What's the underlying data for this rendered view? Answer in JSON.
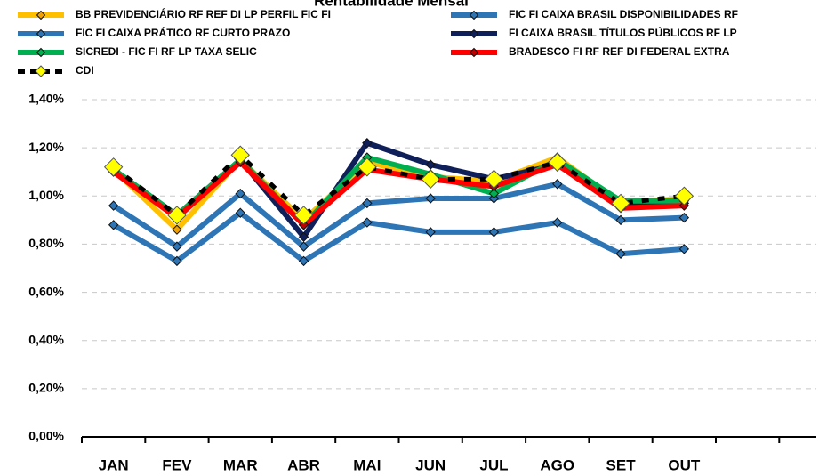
{
  "chart_data": {
    "type": "line",
    "title": "Rentabilidade Mensal",
    "categories": [
      "JAN",
      "FEV",
      "MAR",
      "ABR",
      "MAI",
      "JUN",
      "JUL",
      "AGO",
      "SET",
      "OUT",
      null,
      null
    ],
    "series": [
      {
        "name": "BB PREVIDENCIÁRIO RF REF DI LP PERFIL FIC FI",
        "color": "#ffc000",
        "marker_color": "#f0a000",
        "values": [
          1.11,
          0.86,
          1.15,
          0.9,
          1.14,
          1.08,
          1.06,
          1.16,
          0.97,
          0.99,
          null,
          null
        ]
      },
      {
        "name": "FIC FI CAIXA BRASIL DISPONIBILIDADES RF",
        "color": "#2e75b6",
        "marker_color": "#2e75b6",
        "values": [
          0.88,
          0.73,
          0.93,
          0.73,
          0.89,
          0.85,
          0.85,
          0.89,
          0.76,
          0.78,
          null,
          null
        ]
      },
      {
        "name": "FIC FI CAIXA PRÁTICO RF CURTO PRAZO",
        "color": "#2e75b6",
        "marker_color": "#2e75b6",
        "values": [
          0.96,
          0.79,
          1.01,
          0.79,
          0.97,
          0.99,
          0.99,
          1.05,
          0.9,
          0.91,
          null,
          null
        ]
      },
      {
        "name": "FI CAIXA BRASIL TÍTULOS PÚBLICOS RF LP",
        "color": "#0e1f5a",
        "marker_color": "#0e1f5a",
        "values": [
          1.11,
          0.92,
          1.15,
          0.83,
          1.22,
          1.13,
          1.07,
          1.13,
          0.96,
          0.97,
          null,
          null
        ]
      },
      {
        "name": "SICREDI - FIC FI RF LP TAXA SELIC",
        "color": "#00b050",
        "marker_color": "#00b050",
        "values": [
          1.11,
          0.92,
          1.15,
          0.88,
          1.16,
          1.09,
          1.01,
          1.15,
          0.98,
          0.98,
          null,
          null
        ]
      },
      {
        "name": "BRADESCO FI RF REF DI FEDERAL EXTRA",
        "color": "#ff0000",
        "marker_color": "#c00000",
        "values": [
          1.1,
          0.91,
          1.14,
          0.88,
          1.11,
          1.07,
          1.04,
          1.13,
          0.95,
          0.96,
          null,
          null
        ]
      },
      {
        "name": "CDI",
        "color": "#000000",
        "marker_color": "#ffff00",
        "line_style": "dashed",
        "values": [
          1.12,
          0.92,
          1.17,
          0.92,
          1.12,
          1.07,
          1.07,
          1.14,
          0.97,
          1.0,
          null,
          null
        ]
      }
    ],
    "ylim": [
      0,
      1.4
    ],
    "yticks": [
      {
        "value": 0,
        "label": "0,00%"
      },
      {
        "value": 0.2,
        "label": "0,20%"
      },
      {
        "value": 0.4,
        "label": "0,40%"
      },
      {
        "value": 0.6,
        "label": "0,60%"
      },
      {
        "value": 0.8,
        "label": "0,80%"
      },
      {
        "value": 1.0,
        "label": "1,00%"
      },
      {
        "value": 1.2,
        "label": "1,20%"
      },
      {
        "value": 1.4,
        "label": "1,40%"
      }
    ],
    "grid": true,
    "legend": "top"
  }
}
